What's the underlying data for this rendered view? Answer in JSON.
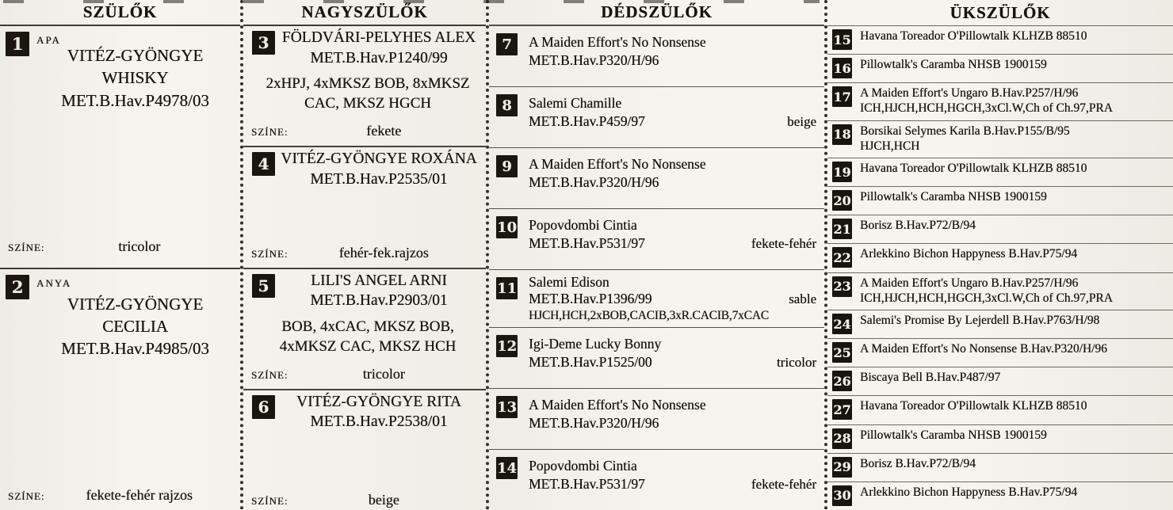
{
  "labels": {
    "color_label": "SZÍNE:"
  },
  "headers": {
    "parents": "SZÜLŐK",
    "grandparents": "NAGYSZÜLŐK",
    "great_grandparents": "DÉDSZÜLŐK",
    "great_great_grandparents": "ÜKSZÜLŐK"
  },
  "parents": [
    {
      "num": "1",
      "relation": "APA",
      "name": "VITÉZ-GYÖNGYE WHISKY",
      "reg": "MET.B.Hav.P4978/03",
      "color": "tricolor"
    },
    {
      "num": "2",
      "relation": "ANYA",
      "name": "VITÉZ-GYÖNGYE CECILIA",
      "reg": "MET.B.Hav.P4985/03",
      "color": "fekete-fehér rajzos"
    }
  ],
  "grandparents": [
    {
      "num": "3",
      "name": "FÖLDVÁRI-PELYHES ALEX",
      "reg": "MET.B.Hav.P1240/99",
      "titles": "2xHPJ, 4xMKSZ BOB, 8xMKSZ CAC, MKSZ HGCH",
      "color": "fekete"
    },
    {
      "num": "4",
      "name": "VITÉZ-GYÖNGYE ROXÁNA",
      "reg": "MET.B.Hav.P2535/01",
      "titles": "",
      "color": "fehér-fek.rajzos"
    },
    {
      "num": "5",
      "name": "LILI'S ANGEL ARNI",
      "reg": "MET.B.Hav.P2903/01",
      "titles": "BOB, 4xCAC, MKSZ BOB, 4xMKSZ CAC, MKSZ HCH",
      "color": "tricolor"
    },
    {
      "num": "6",
      "name": "VITÉZ-GYÖNGYE RITA",
      "reg": "MET.B.Hav.P2538/01",
      "titles": "",
      "color": "beige"
    }
  ],
  "great_grandparents": [
    {
      "num": "7",
      "name": "A Maiden Effort's No Nonsense",
      "reg": "MET.B.Hav.P320/H/96",
      "color": "",
      "titles": ""
    },
    {
      "num": "8",
      "name": "Salemi Chamille",
      "reg": "MET.B.Hav.P459/97",
      "color": "beige",
      "titles": ""
    },
    {
      "num": "9",
      "name": "A Maiden Effort's No Nonsense",
      "reg": "MET.B.Hav.P320/H/96",
      "color": "",
      "titles": ""
    },
    {
      "num": "10",
      "name": "Popovdombi Cintia",
      "reg": "MET.B.Hav.P531/97",
      "color": "fekete-fehér",
      "titles": ""
    },
    {
      "num": "11",
      "name": "Salemi Edison",
      "reg": "MET.B.Hav.P1396/99",
      "color": "sable",
      "titles": "HJCH,HCH,2xBOB,CACIB,3xR.CACIB,7xCAC"
    },
    {
      "num": "12",
      "name": "Igi-Deme Lucky Bonny",
      "reg": "MET.B.Hav.P1525/00",
      "color": "tricolor",
      "titles": ""
    },
    {
      "num": "13",
      "name": "A Maiden Effort's No Nonsense",
      "reg": "MET.B.Hav.P320/H/96",
      "color": "",
      "titles": ""
    },
    {
      "num": "14",
      "name": "Popovdombi Cintia",
      "reg": "MET.B.Hav.P531/97",
      "color": "fekete-fehér",
      "titles": ""
    }
  ],
  "great_great_grandparents": [
    {
      "num": "15",
      "line1": "Havana Toreador O'Pillowtalk KLHZB 88510",
      "line2": ""
    },
    {
      "num": "16",
      "line1": "Pillowtalk's Caramba NHSB 1900159",
      "line2": ""
    },
    {
      "num": "17",
      "line1": "A Maiden Effort's Ungaro B.Hav.P257/H/96",
      "line2": "ICH,HJCH,HCH,HGCH,3xCl.W,Ch of Ch.97,PRA"
    },
    {
      "num": "18",
      "line1": "Borsikai Selymes Karila B.Hav.P155/B/95",
      "line2": "HJCH,HCH"
    },
    {
      "num": "19",
      "line1": "Havana Toreador O'Pillowtalk KLHZB 88510",
      "line2": ""
    },
    {
      "num": "20",
      "line1": "Pillowtalk's Caramba NHSB 1900159",
      "line2": ""
    },
    {
      "num": "21",
      "line1": "Borisz B.Hav.P72/B/94",
      "line2": ""
    },
    {
      "num": "22",
      "line1": "Arlekkino Bichon Happyness B.Hav.P75/94",
      "line2": ""
    },
    {
      "num": "23",
      "line1": "A Maiden Effort's Ungaro B.Hav.P257/H/96",
      "line2": "ICH,HJCH,HCH,HGCH,3xCl.W,Ch of Ch.97,PRA"
    },
    {
      "num": "24",
      "line1": "Salemi's Promise By Lejerdell B.Hav.P763/H/98",
      "line2": ""
    },
    {
      "num": "25",
      "line1": "A Maiden Effort's No Nonsense B.Hav.P320/H/96",
      "line2": ""
    },
    {
      "num": "26",
      "line1": "Biscaya Bell B.Hav.P487/97",
      "line2": ""
    },
    {
      "num": "27",
      "line1": "Havana Toreador O'Pillowtalk KLHZB 88510",
      "line2": ""
    },
    {
      "num": "28",
      "line1": "Pillowtalk's Caramba NHSB 1900159",
      "line2": ""
    },
    {
      "num": "29",
      "line1": "Borisz B.Hav.P72/B/94",
      "line2": ""
    },
    {
      "num": "30",
      "line1": "Arlekkino Bichon Happyness B.Hav.P75/94",
      "line2": ""
    }
  ]
}
